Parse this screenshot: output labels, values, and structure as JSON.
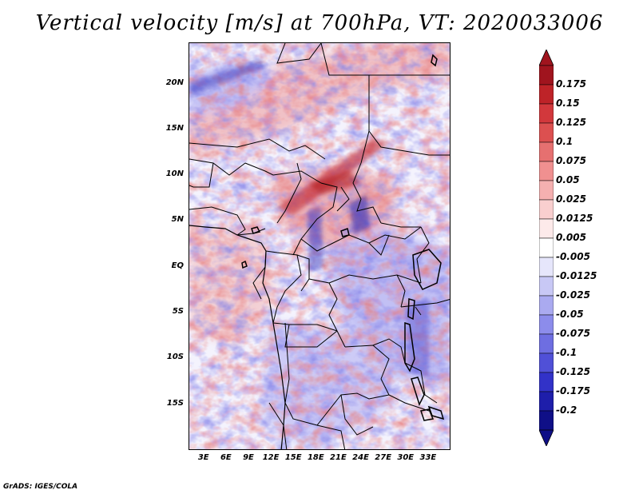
{
  "title": "Vertical velocity [m/s] at 700hPa, VT: 2020033006",
  "footer": "GrADS: IGES/COLA",
  "map": {
    "lat_labels": [
      "20N",
      "15N",
      "10N",
      "5N",
      "EQ",
      "5S",
      "10S",
      "15S"
    ],
    "lon_labels": [
      "3E",
      "6E",
      "9E",
      "12E",
      "15E",
      "18E",
      "21E",
      "24E",
      "27E",
      "30E",
      "33E"
    ],
    "lat_values": [
      20,
      15,
      10,
      5,
      0,
      -5,
      -10,
      -15
    ],
    "lon_values": [
      3,
      6,
      9,
      12,
      15,
      18,
      21,
      24,
      27,
      30,
      33
    ],
    "lon_range": [
      1,
      36
    ],
    "lat_range": [
      -20,
      24.5
    ]
  },
  "colorbar": {
    "labels": [
      "0.175",
      "0.15",
      "0.125",
      "0.1",
      "0.075",
      "0.05",
      "0.025",
      "0.0125",
      "0.005",
      "-0.005",
      "-0.0125",
      "-0.025",
      "-0.05",
      "-0.075",
      "-0.1",
      "-0.125",
      "-0.175",
      "-0.2"
    ],
    "colors": [
      "#a0141e",
      "#be2328",
      "#d2383c",
      "#dc5050",
      "#e67070",
      "#f09090",
      "#f5b0b0",
      "#f9cfcf",
      "#fdeaea",
      "#ffffff",
      "#e6e6fb",
      "#c8c8f5",
      "#aaaaf0",
      "#8c8ceb",
      "#6e6ee1",
      "#5050d7",
      "#3232c8",
      "#1e1eaa",
      "#0f0f87"
    ],
    "cap_top_color": "#a0141e",
    "cap_bottom_color": "#0f0f87"
  },
  "colors": {
    "positive": "#dc5050",
    "negative": "#6e6ee1",
    "border": "#000000"
  }
}
